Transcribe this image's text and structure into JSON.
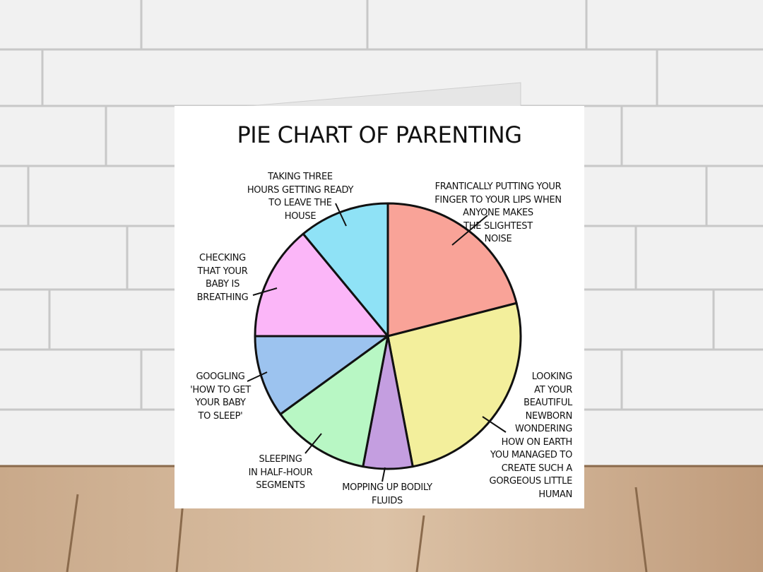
{
  "chart_data": {
    "type": "pie",
    "title": "PIE CHART OF PARENTING",
    "categories": [
      "FRANTICALLY PUTTING YOUR\nFINGER TO YOUR LIPS WHEN\nANYONE MAKES\nTHE SLIGHTEST\nNOISE",
      "LOOKING\nAT YOUR\nBEAUTIFUL\nNEWBORN\nWONDERING\nHOW ON EARTH\nYOU MANAGED TO\nCREATE SUCH A\nGORGEOUS LITTLE\nHUMAN",
      "MOPPING UP BODILY\nFLUIDS",
      "SLEEPING\nIN HALF-HOUR\nSEGMENTS",
      "GOOGLING\n'HOW TO GET\nYOUR BABY\nTO SLEEP'",
      "CHECKING\nTHAT YOUR\nBABY IS\nBREATHING",
      "TAKING THREE\nHOURS GETTING READY\nTO LEAVE THE\nHOUSE"
    ],
    "values": [
      21,
      26,
      6,
      12,
      10,
      14,
      11
    ],
    "colors": [
      "#f9a398",
      "#f3ef9c",
      "#c49ee0",
      "#b8f7c4",
      "#9cc3ef",
      "#fbb6f8",
      "#8fe2f6"
    ]
  }
}
